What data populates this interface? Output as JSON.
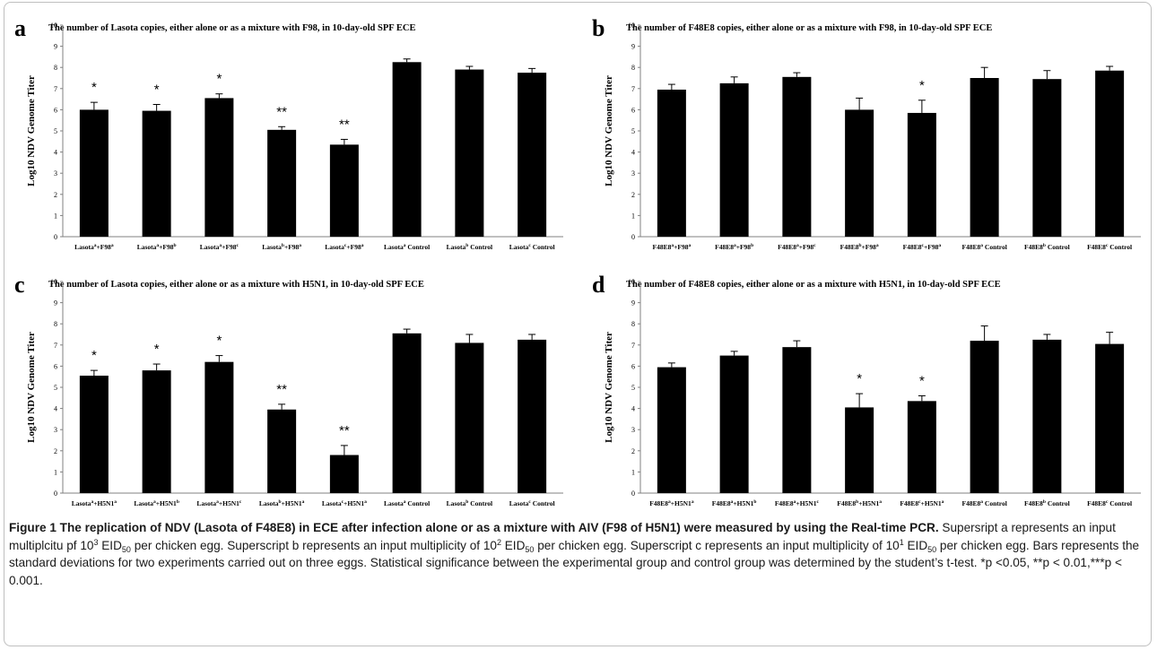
{
  "chart_data": [
    {
      "type": "bar",
      "panel_label": "a",
      "title": "The number of Lasota copies, either alone or as a mixture with F98, in 10-day-old SPF ECE",
      "ylabel": "Log10 NDV Genome Titer",
      "ylim": [
        0,
        10
      ],
      "yticks": [
        "0",
        "1",
        "2",
        "3",
        "4",
        "5",
        "6",
        "7",
        "8",
        "9",
        "10"
      ],
      "categories": [
        [
          {
            "t": "Lasota"
          },
          {
            "t": "a",
            "sup": true
          },
          {
            "t": "+F98"
          },
          {
            "t": "a",
            "sup": true
          }
        ],
        [
          {
            "t": "Lasota"
          },
          {
            "t": "a",
            "sup": true
          },
          {
            "t": "+F98"
          },
          {
            "t": "b",
            "sup": true
          }
        ],
        [
          {
            "t": "Lasota"
          },
          {
            "t": "a",
            "sup": true
          },
          {
            "t": "+F98"
          },
          {
            "t": "c",
            "sup": true
          }
        ],
        [
          {
            "t": "Lasota"
          },
          {
            "t": "b",
            "sup": true
          },
          {
            "t": "+F98"
          },
          {
            "t": "a",
            "sup": true
          }
        ],
        [
          {
            "t": "Lasota"
          },
          {
            "t": "c",
            "sup": true
          },
          {
            "t": "+F98"
          },
          {
            "t": "a",
            "sup": true
          }
        ],
        [
          {
            "t": "Lasota"
          },
          {
            "t": "a",
            "sup": true
          },
          {
            "t": " Control"
          }
        ],
        [
          {
            "t": "Lasota"
          },
          {
            "t": "b",
            "sup": true
          },
          {
            "t": " Control"
          }
        ],
        [
          {
            "t": "Lasota"
          },
          {
            "t": "c",
            "sup": true
          },
          {
            "t": " Control"
          }
        ]
      ],
      "values": [
        6.0,
        5.95,
        6.55,
        5.05,
        4.35,
        8.25,
        7.9,
        7.75
      ],
      "errors": [
        0.35,
        0.3,
        0.2,
        0.15,
        0.25,
        0.15,
        0.15,
        0.2
      ],
      "significance": [
        "*",
        "*",
        "*",
        "**",
        "**",
        "",
        "",
        ""
      ]
    },
    {
      "type": "bar",
      "panel_label": "b",
      "title": "The number of F48E8 copies, either alone or as a mixture with F98, in 10-day-old SPF ECE",
      "ylabel": "Log10 NDV Genome Titer",
      "ylim": [
        0,
        10
      ],
      "yticks": [
        "0",
        "1",
        "2",
        "3",
        "4",
        "5",
        "6",
        "7",
        "8",
        "9",
        "10"
      ],
      "categories": [
        [
          {
            "t": "F48E8"
          },
          {
            "t": "a",
            "sup": true
          },
          {
            "t": "+F98"
          },
          {
            "t": "a",
            "sup": true
          }
        ],
        [
          {
            "t": "F48E8"
          },
          {
            "t": "a",
            "sup": true
          },
          {
            "t": "+F98"
          },
          {
            "t": "b",
            "sup": true
          }
        ],
        [
          {
            "t": "F48E8"
          },
          {
            "t": "a",
            "sup": true
          },
          {
            "t": "+F98"
          },
          {
            "t": "c",
            "sup": true
          }
        ],
        [
          {
            "t": "F48E8"
          },
          {
            "t": "b",
            "sup": true
          },
          {
            "t": "+F98"
          },
          {
            "t": "a",
            "sup": true
          }
        ],
        [
          {
            "t": "F48E8"
          },
          {
            "t": "c",
            "sup": true
          },
          {
            "t": "+F98"
          },
          {
            "t": "a",
            "sup": true
          }
        ],
        [
          {
            "t": "F48E8"
          },
          {
            "t": "a",
            "sup": true
          },
          {
            "t": " Control"
          }
        ],
        [
          {
            "t": "F48E8"
          },
          {
            "t": "b",
            "sup": true
          },
          {
            "t": " Control"
          }
        ],
        [
          {
            "t": "F48E8"
          },
          {
            "t": "c",
            "sup": true
          },
          {
            "t": " Control"
          }
        ]
      ],
      "values": [
        6.95,
        7.25,
        7.55,
        6.0,
        5.85,
        7.5,
        7.45,
        7.85
      ],
      "errors": [
        0.25,
        0.3,
        0.2,
        0.55,
        0.6,
        0.5,
        0.4,
        0.2
      ],
      "significance": [
        "",
        "",
        "",
        "",
        "*",
        "",
        "",
        ""
      ]
    },
    {
      "type": "bar",
      "panel_label": "c",
      "title": "The number of Lasota copies, either alone or as a mixture with H5N1, in 10-day-old SPF ECE",
      "ylabel": "Log10 NDV Genome Titer",
      "ylim": [
        0,
        10
      ],
      "yticks": [
        "0",
        "1",
        "2",
        "3",
        "4",
        "5",
        "6",
        "7",
        "8",
        "9",
        "10"
      ],
      "categories": [
        [
          {
            "t": "Lasota"
          },
          {
            "t": "a",
            "sup": true
          },
          {
            "t": "+H5N1"
          },
          {
            "t": "a",
            "sup": true
          }
        ],
        [
          {
            "t": "Lasota"
          },
          {
            "t": "a",
            "sup": true
          },
          {
            "t": "+H5N1"
          },
          {
            "t": "b",
            "sup": true
          }
        ],
        [
          {
            "t": "Lasota"
          },
          {
            "t": "a",
            "sup": true
          },
          {
            "t": "+H5N1"
          },
          {
            "t": "c",
            "sup": true
          }
        ],
        [
          {
            "t": "Lasota"
          },
          {
            "t": "b",
            "sup": true
          },
          {
            "t": "+H5N1"
          },
          {
            "t": "a",
            "sup": true
          }
        ],
        [
          {
            "t": "Lasota"
          },
          {
            "t": "c",
            "sup": true
          },
          {
            "t": "+H5N1"
          },
          {
            "t": "a",
            "sup": true
          }
        ],
        [
          {
            "t": "Lasota"
          },
          {
            "t": "a",
            "sup": true
          },
          {
            "t": " Control"
          }
        ],
        [
          {
            "t": "Lasota"
          },
          {
            "t": "b",
            "sup": true
          },
          {
            "t": " Control"
          }
        ],
        [
          {
            "t": "Lasota"
          },
          {
            "t": "c",
            "sup": true
          },
          {
            "t": " Control"
          }
        ]
      ],
      "values": [
        5.55,
        5.8,
        6.2,
        3.95,
        1.8,
        7.55,
        7.1,
        7.25
      ],
      "errors": [
        0.25,
        0.3,
        0.3,
        0.25,
        0.45,
        0.2,
        0.4,
        0.25
      ],
      "significance": [
        "*",
        "*",
        "*",
        "**",
        "**",
        "",
        "",
        ""
      ]
    },
    {
      "type": "bar",
      "panel_label": "d",
      "title": "The number of F48E8 copies, either alone or as a mixture with H5N1, in 10-day-old SPF ECE",
      "ylabel": "Log10 NDV Genome Titer",
      "ylim": [
        0,
        10
      ],
      "yticks": [
        "0",
        "1",
        "2",
        "3",
        "4",
        "5",
        "6",
        "7",
        "8",
        "9",
        "10"
      ],
      "categories": [
        [
          {
            "t": "F48E8"
          },
          {
            "t": "a",
            "sup": true
          },
          {
            "t": "+H5N1"
          },
          {
            "t": "a",
            "sup": true
          }
        ],
        [
          {
            "t": "F48E8"
          },
          {
            "t": "a",
            "sup": true
          },
          {
            "t": "+H5N1"
          },
          {
            "t": "b",
            "sup": true
          }
        ],
        [
          {
            "t": "F48E8"
          },
          {
            "t": "a",
            "sup": true
          },
          {
            "t": "+H5N1"
          },
          {
            "t": "c",
            "sup": true
          }
        ],
        [
          {
            "t": "F48E8"
          },
          {
            "t": "b",
            "sup": true
          },
          {
            "t": "+H5N1"
          },
          {
            "t": "a",
            "sup": true
          }
        ],
        [
          {
            "t": "F48E8"
          },
          {
            "t": "c",
            "sup": true
          },
          {
            "t": "+H5N1"
          },
          {
            "t": "a",
            "sup": true
          }
        ],
        [
          {
            "t": "F48E8"
          },
          {
            "t": "a",
            "sup": true
          },
          {
            "t": " Control"
          }
        ],
        [
          {
            "t": "F48E8"
          },
          {
            "t": "b",
            "sup": true
          },
          {
            "t": " Control"
          }
        ],
        [
          {
            "t": "F48E8"
          },
          {
            "t": "c",
            "sup": true
          },
          {
            "t": " Control"
          }
        ]
      ],
      "values": [
        5.95,
        6.5,
        6.9,
        4.05,
        4.35,
        7.2,
        7.25,
        7.05
      ],
      "errors": [
        0.2,
        0.2,
        0.3,
        0.65,
        0.25,
        0.7,
        0.25,
        0.55
      ],
      "significance": [
        "",
        "",
        "",
        "*",
        "*",
        "",
        "",
        ""
      ]
    }
  ],
  "caption": {
    "bold_segments": [
      {
        "t": "Figure 1 The replication of NDV (Lasota of F48E8) in ECE after infection alone or as a mixture with AIV (F98 of H5N1) were measured by using the Real-time PCR."
      }
    ],
    "segments": [
      {
        "t": " Supersript a represents an input multiplcitu pf 10"
      },
      {
        "t": "3",
        "sup": true
      },
      {
        "t": " EID"
      },
      {
        "t": "50",
        "sub": true
      },
      {
        "t": " per chicken egg. Superscript b represents an input multiplicity of 10"
      },
      {
        "t": "2",
        "sup": true
      },
      {
        "t": " EID"
      },
      {
        "t": "50",
        "sub": true
      },
      {
        "t": " per chicken egg. Superscript c represents an input multiplicity of 10"
      },
      {
        "t": "1",
        "sup": true
      },
      {
        "t": " EID"
      },
      {
        "t": "50",
        "sub": true
      },
      {
        "t": " per chicken egg. Bars represents the standard deviations for two experiments carried out on three eggs. Statistical significance between the experimental group and control group was determined by the student’s t-test. *p <0.05, **p < 0.01,***p < 0.001."
      }
    ]
  }
}
